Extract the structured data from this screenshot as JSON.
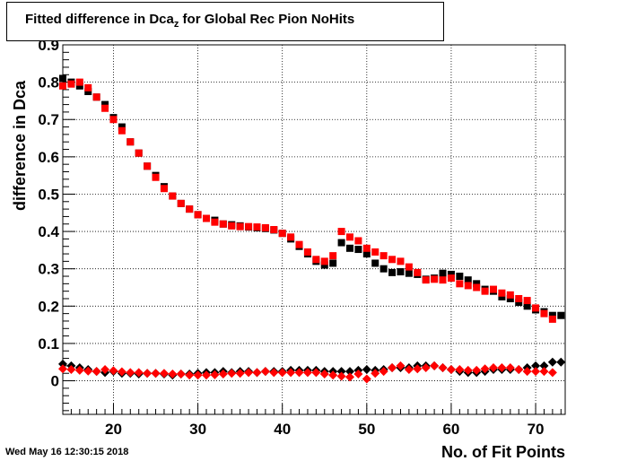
{
  "header": {
    "title_prefix": "Fitted difference in Dca",
    "title_sub": "z",
    "title_suffix": " for Global Rec Pion NoHits"
  },
  "footer": {
    "timestamp": "Wed May 16 12:30:15 2018"
  },
  "chart_data": {
    "type": "scatter",
    "xlabel": "No. of Fit Points",
    "ylabel": "difference in Dca",
    "xlim": [
      14,
      73.5
    ],
    "ylim": [
      -0.09,
      0.9
    ],
    "x_ticks": [
      20,
      30,
      40,
      50,
      60,
      70
    ],
    "y_ticks": [
      0,
      0.1,
      0.2,
      0.3,
      0.4,
      0.5,
      0.6,
      0.7,
      0.8,
      0.9
    ],
    "grid": true,
    "legend": "none",
    "series": [
      {
        "marker": "square",
        "color": "#000000",
        "points": [
          [
            14,
            0.81
          ],
          [
            15,
            0.8
          ],
          [
            16,
            0.79
          ],
          [
            17,
            0.775
          ],
          [
            18,
            0.76
          ],
          [
            19,
            0.74
          ],
          [
            20,
            0.705
          ],
          [
            21,
            0.68
          ],
          [
            22,
            0.64
          ],
          [
            23,
            0.61
          ],
          [
            24,
            0.575
          ],
          [
            25,
            0.55
          ],
          [
            26,
            0.52
          ],
          [
            27,
            0.495
          ],
          [
            28,
            0.475
          ],
          [
            29,
            0.46
          ],
          [
            30,
            0.445
          ],
          [
            31,
            0.435
          ],
          [
            32,
            0.43
          ],
          [
            33,
            0.42
          ],
          [
            34,
            0.418
          ],
          [
            35,
            0.415
          ],
          [
            36,
            0.412
          ],
          [
            37,
            0.41
          ],
          [
            38,
            0.408
          ],
          [
            39,
            0.404
          ],
          [
            40,
            0.395
          ],
          [
            41,
            0.38
          ],
          [
            42,
            0.36
          ],
          [
            43,
            0.34
          ],
          [
            44,
            0.32
          ],
          [
            45,
            0.31
          ],
          [
            46,
            0.315
          ],
          [
            47,
            0.37
          ],
          [
            48,
            0.355
          ],
          [
            49,
            0.352
          ],
          [
            50,
            0.34
          ],
          [
            51,
            0.315
          ],
          [
            52,
            0.3
          ],
          [
            53,
            0.29
          ],
          [
            54,
            0.292
          ],
          [
            55,
            0.288
          ],
          [
            56,
            0.285
          ],
          [
            57,
            0.272
          ],
          [
            58,
            0.275
          ],
          [
            59,
            0.288
          ],
          [
            60,
            0.285
          ],
          [
            61,
            0.28
          ],
          [
            62,
            0.27
          ],
          [
            63,
            0.26
          ],
          [
            64,
            0.245
          ],
          [
            65,
            0.24
          ],
          [
            66,
            0.225
          ],
          [
            67,
            0.22
          ],
          [
            68,
            0.21
          ],
          [
            69,
            0.2
          ],
          [
            70,
            0.19
          ],
          [
            71,
            0.185
          ],
          [
            72,
            0.175
          ],
          [
            73,
            0.175
          ]
        ]
      },
      {
        "marker": "square",
        "color": "#ff0000",
        "points": [
          [
            14,
            0.79
          ],
          [
            15,
            0.795
          ],
          [
            16,
            0.8
          ],
          [
            17,
            0.785
          ],
          [
            18,
            0.76
          ],
          [
            19,
            0.73
          ],
          [
            20,
            0.7
          ],
          [
            21,
            0.67
          ],
          [
            22,
            0.64
          ],
          [
            23,
            0.61
          ],
          [
            24,
            0.575
          ],
          [
            25,
            0.545
          ],
          [
            26,
            0.515
          ],
          [
            27,
            0.495
          ],
          [
            28,
            0.475
          ],
          [
            29,
            0.46
          ],
          [
            30,
            0.445
          ],
          [
            31,
            0.435
          ],
          [
            32,
            0.425
          ],
          [
            33,
            0.42
          ],
          [
            34,
            0.415
          ],
          [
            35,
            0.413
          ],
          [
            36,
            0.413
          ],
          [
            37,
            0.412
          ],
          [
            38,
            0.41
          ],
          [
            39,
            0.405
          ],
          [
            40,
            0.395
          ],
          [
            41,
            0.385
          ],
          [
            42,
            0.365
          ],
          [
            43,
            0.345
          ],
          [
            44,
            0.325
          ],
          [
            45,
            0.32
          ],
          [
            46,
            0.335
          ],
          [
            47,
            0.4
          ],
          [
            48,
            0.385
          ],
          [
            49,
            0.375
          ],
          [
            50,
            0.355
          ],
          [
            51,
            0.345
          ],
          [
            52,
            0.335
          ],
          [
            53,
            0.325
          ],
          [
            54,
            0.32
          ],
          [
            55,
            0.305
          ],
          [
            56,
            0.29
          ],
          [
            57,
            0.27
          ],
          [
            58,
            0.272
          ],
          [
            59,
            0.27
          ],
          [
            60,
            0.275
          ],
          [
            61,
            0.26
          ],
          [
            62,
            0.255
          ],
          [
            63,
            0.25
          ],
          [
            64,
            0.24
          ],
          [
            65,
            0.245
          ],
          [
            66,
            0.235
          ],
          [
            67,
            0.23
          ],
          [
            68,
            0.22
          ],
          [
            69,
            0.215
          ],
          [
            70,
            0.195
          ],
          [
            71,
            0.18
          ],
          [
            72,
            0.165
          ]
        ]
      },
      {
        "marker": "diamond",
        "color": "#000000",
        "points": [
          [
            14,
            0.045
          ],
          [
            15,
            0.04
          ],
          [
            16,
            0.035
          ],
          [
            17,
            0.03
          ],
          [
            18,
            0.025
          ],
          [
            19,
            0.022
          ],
          [
            20,
            0.025
          ],
          [
            21,
            0.02
          ],
          [
            22,
            0.02
          ],
          [
            23,
            0.018
          ],
          [
            24,
            0.02
          ],
          [
            25,
            0.02
          ],
          [
            26,
            0.018
          ],
          [
            27,
            0.015
          ],
          [
            28,
            0.018
          ],
          [
            29,
            0.018
          ],
          [
            30,
            0.02
          ],
          [
            31,
            0.022
          ],
          [
            32,
            0.022
          ],
          [
            33,
            0.025
          ],
          [
            34,
            0.022
          ],
          [
            35,
            0.025
          ],
          [
            36,
            0.025
          ],
          [
            37,
            0.022
          ],
          [
            38,
            0.025
          ],
          [
            39,
            0.025
          ],
          [
            40,
            0.025
          ],
          [
            41,
            0.028
          ],
          [
            42,
            0.028
          ],
          [
            43,
            0.028
          ],
          [
            44,
            0.028
          ],
          [
            45,
            0.025
          ],
          [
            46,
            0.025
          ],
          [
            47,
            0.025
          ],
          [
            48,
            0.025
          ],
          [
            49,
            0.028
          ],
          [
            50,
            0.03
          ],
          [
            51,
            0.028
          ],
          [
            52,
            0.03
          ],
          [
            53,
            0.035
          ],
          [
            54,
            0.035
          ],
          [
            55,
            0.035
          ],
          [
            56,
            0.04
          ],
          [
            57,
            0.04
          ],
          [
            58,
            0.04
          ],
          [
            59,
            0.035
          ],
          [
            60,
            0.03
          ],
          [
            61,
            0.025
          ],
          [
            62,
            0.022
          ],
          [
            63,
            0.022
          ],
          [
            64,
            0.025
          ],
          [
            65,
            0.03
          ],
          [
            66,
            0.03
          ],
          [
            67,
            0.03
          ],
          [
            68,
            0.03
          ],
          [
            69,
            0.035
          ],
          [
            70,
            0.04
          ],
          [
            71,
            0.04
          ],
          [
            72,
            0.05
          ],
          [
            73,
            0.05
          ]
        ]
      },
      {
        "marker": "diamond",
        "color": "#ff0000",
        "points": [
          [
            14,
            0.032
          ],
          [
            15,
            0.03
          ],
          [
            16,
            0.028
          ],
          [
            17,
            0.026
          ],
          [
            18,
            0.025
          ],
          [
            19,
            0.03
          ],
          [
            20,
            0.027
          ],
          [
            21,
            0.024
          ],
          [
            22,
            0.022
          ],
          [
            23,
            0.022
          ],
          [
            24,
            0.02
          ],
          [
            25,
            0.02
          ],
          [
            26,
            0.02
          ],
          [
            27,
            0.018
          ],
          [
            28,
            0.018
          ],
          [
            29,
            0.015
          ],
          [
            30,
            0.015
          ],
          [
            31,
            0.015
          ],
          [
            32,
            0.016
          ],
          [
            33,
            0.018
          ],
          [
            34,
            0.02
          ],
          [
            35,
            0.02
          ],
          [
            36,
            0.022
          ],
          [
            37,
            0.022
          ],
          [
            38,
            0.025
          ],
          [
            39,
            0.022
          ],
          [
            40,
            0.022
          ],
          [
            41,
            0.022
          ],
          [
            42,
            0.022
          ],
          [
            43,
            0.022
          ],
          [
            44,
            0.022
          ],
          [
            45,
            0.018
          ],
          [
            46,
            0.015
          ],
          [
            47,
            0.012
          ],
          [
            48,
            0.01
          ],
          [
            49,
            0.018
          ],
          [
            50,
            0.005
          ],
          [
            51,
            0.02
          ],
          [
            52,
            0.025
          ],
          [
            53,
            0.035
          ],
          [
            54,
            0.04
          ],
          [
            55,
            0.03
          ],
          [
            56,
            0.032
          ],
          [
            57,
            0.035
          ],
          [
            58,
            0.04
          ],
          [
            59,
            0.035
          ],
          [
            60,
            0.03
          ],
          [
            61,
            0.03
          ],
          [
            62,
            0.028
          ],
          [
            63,
            0.028
          ],
          [
            64,
            0.032
          ],
          [
            65,
            0.035
          ],
          [
            66,
            0.035
          ],
          [
            67,
            0.035
          ],
          [
            68,
            0.03
          ],
          [
            69,
            0.025
          ],
          [
            70,
            0.025
          ],
          [
            71,
            0.025
          ],
          [
            72,
            0.022
          ]
        ]
      }
    ]
  }
}
